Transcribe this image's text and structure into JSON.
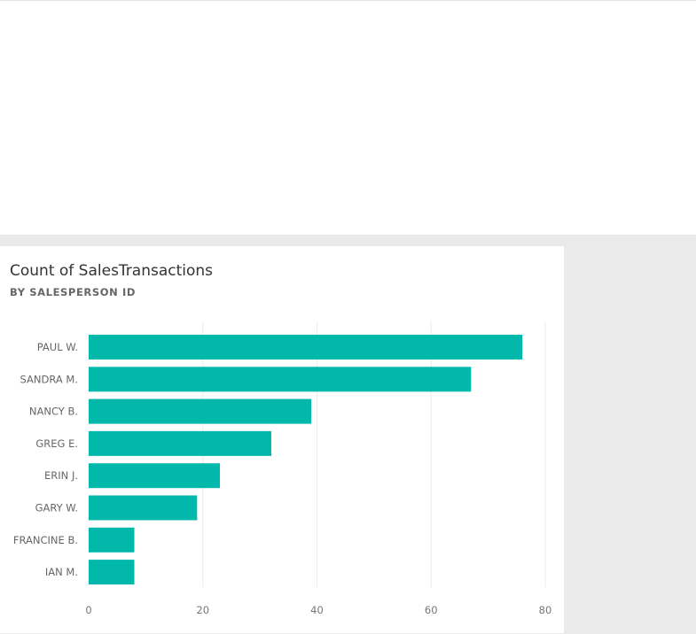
{
  "chart_data": {
    "type": "bar",
    "orientation": "horizontal",
    "title": "Count of SalesTransactions",
    "subtitle": "BY SALESPERSON ID",
    "categories": [
      "PAUL W.",
      "SANDRA M.",
      "NANCY B.",
      "GREG E.",
      "ERIN J.",
      "GARY W.",
      "FRANCINE B.",
      "IAN M."
    ],
    "values": [
      76,
      67,
      39,
      32,
      23,
      19,
      8,
      8
    ],
    "xlim": [
      0,
      80
    ],
    "xticks": [
      0,
      20,
      40,
      60,
      80
    ],
    "xlabel": "",
    "ylabel": "",
    "grid": true,
    "bar_color": "#01b8aa"
  }
}
